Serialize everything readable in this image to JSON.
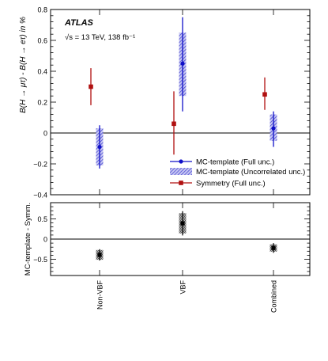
{
  "chart_data": [
    {
      "type": "errorbar",
      "experiment_label": "ATLAS",
      "energy_label": "√s = 13 TeV, 138 fb⁻¹",
      "ylabel": "B(H → μτ) - B(H → eτ) in %",
      "ylim": [
        -0.4,
        0.8
      ],
      "yticks": [
        -0.4,
        -0.2,
        0,
        0.2,
        0.4,
        0.6,
        0.8
      ],
      "yticklabels": [
        "−0.4",
        "−0.2",
        "0",
        "0.2",
        "0.4",
        "0.6",
        "0.8"
      ],
      "categories": [
        "Non-VBF",
        "VBF",
        "Combined"
      ],
      "legend_position": "lower-right",
      "series": [
        {
          "name": "MC-template (Full unc.)",
          "color": "#1010c8",
          "marker": "circle",
          "values": [
            -0.09,
            0.45,
            0.03
          ],
          "err_low": [
            0.14,
            0.31,
            0.12
          ],
          "err_high": [
            0.14,
            0.3,
            0.11
          ]
        },
        {
          "name": "MC-template (Uncorrelated unc.)",
          "color": "#5b5bdc",
          "marker": "hatched-band",
          "values": [
            -0.09,
            0.45,
            0.03
          ],
          "err_low": [
            0.12,
            0.21,
            0.08
          ],
          "err_high": [
            0.12,
            0.2,
            0.09
          ]
        },
        {
          "name": "Symmetry (Full unc.)",
          "color": "#b01010",
          "marker": "square",
          "values": [
            0.3,
            0.06,
            0.25
          ],
          "err_low": [
            0.12,
            0.2,
            0.1
          ],
          "err_high": [
            0.12,
            0.21,
            0.11
          ]
        }
      ]
    },
    {
      "type": "errorbar",
      "ylabel": "MC-template - Symm.",
      "ylim": [
        -0.9,
        0.9
      ],
      "yticks": [
        -0.5,
        0,
        0.5
      ],
      "yticklabels": [
        "−0.5",
        "0",
        "0.5"
      ],
      "categories": [
        "Non-VBF",
        "VBF",
        "Combined"
      ],
      "series": [
        {
          "name": "",
          "color": "#000000",
          "marker": "square",
          "values": [
            -0.39,
            0.39,
            -0.22
          ],
          "err_low": [
            0.14,
            0.3,
            0.12
          ],
          "err_high": [
            0.14,
            0.3,
            0.12
          ],
          "band_low": [
            0.12,
            0.25,
            0.09
          ],
          "band_high": [
            0.12,
            0.25,
            0.09
          ]
        }
      ]
    }
  ]
}
